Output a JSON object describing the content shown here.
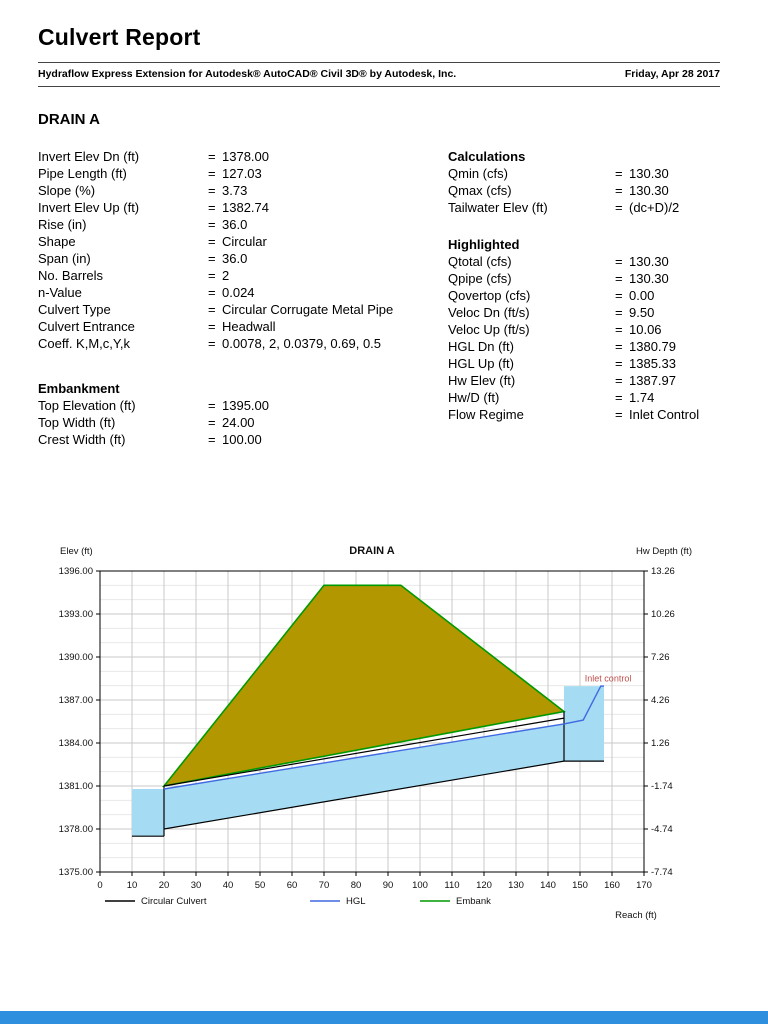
{
  "equals_sign": "=",
  "header": {
    "title": "Culvert Report",
    "subtitle": "Hydraflow Express Extension for Autodesk® AutoCAD® Civil 3D® by Autodesk, Inc.",
    "date": "Friday, Apr 28 2017"
  },
  "drain": {
    "heading": "DRAIN A"
  },
  "params_left": {
    "rows": [
      {
        "label": "Invert Elev Dn (ft)",
        "value": "1378.00"
      },
      {
        "label": "Pipe Length (ft)",
        "value": "127.03"
      },
      {
        "label": "Slope (%)",
        "value": "3.73"
      },
      {
        "label": "Invert Elev Up (ft)",
        "value": "1382.74"
      },
      {
        "label": "Rise (in)",
        "value": "36.0"
      },
      {
        "label": "Shape",
        "value": "Circular"
      },
      {
        "label": "Span (in)",
        "value": "36.0"
      },
      {
        "label": "No. Barrels",
        "value": "2"
      },
      {
        "label": "n-Value",
        "value": "0.024"
      },
      {
        "label": "Culvert Type",
        "value": "Circular Corrugate Metal Pipe"
      },
      {
        "label": "Culvert Entrance",
        "value": "Headwall"
      },
      {
        "label": "Coeff. K,M,c,Y,k",
        "value": "0.0078, 2, 0.0379, 0.69, 0.5"
      }
    ]
  },
  "embankment": {
    "heading": "Embankment",
    "rows": [
      {
        "label": "Top Elevation (ft)",
        "value": "1395.00"
      },
      {
        "label": "Top Width (ft)",
        "value": "24.00"
      },
      {
        "label": "Crest Width (ft)",
        "value": "100.00"
      }
    ]
  },
  "calculations": {
    "heading": "Calculations",
    "rows": [
      {
        "label": "Qmin (cfs)",
        "value": "130.30"
      },
      {
        "label": "Qmax (cfs)",
        "value": "130.30"
      },
      {
        "label": "Tailwater Elev (ft)",
        "value": "(dc+D)/2"
      }
    ]
  },
  "highlighted": {
    "heading": "Highlighted",
    "rows": [
      {
        "label": "Qtotal (cfs)",
        "value": "130.30"
      },
      {
        "label": "Qpipe (cfs)",
        "value": "130.30"
      },
      {
        "label": "Qovertop (cfs)",
        "value": "0.00"
      },
      {
        "label": "Veloc Dn (ft/s)",
        "value": "9.50"
      },
      {
        "label": "Veloc Up (ft/s)",
        "value": "10.06"
      },
      {
        "label": "HGL Dn (ft)",
        "value": "1380.79"
      },
      {
        "label": "HGL Up (ft)",
        "value": "1385.33"
      },
      {
        "label": "Hw Elev (ft)",
        "value": "1387.97"
      },
      {
        "label": "Hw/D (ft)",
        "value": "1.74"
      },
      {
        "label": "Flow Regime",
        "value": "Inlet Control"
      }
    ]
  },
  "chart_data": {
    "type": "area",
    "title": "DRAIN A",
    "left_axis_title": "Elev (ft)",
    "right_axis_title": "Hw Depth (ft)",
    "x_axis_title": "Reach (ft)",
    "reach_range": [
      0,
      170
    ],
    "elev_range": [
      1375,
      1396
    ],
    "x_tick_step": 10,
    "elev_ticks": [
      "1396.00",
      "1393.00",
      "1390.00",
      "1387.00",
      "1384.00",
      "1381.00",
      "1378.00",
      "1375.00"
    ],
    "hw_depth_ticks": [
      "13.26",
      "10.26",
      "7.26",
      "4.26",
      "1.26",
      "-1.74",
      "-4.74",
      "-7.74"
    ],
    "colors": {
      "water_fill": "#a5dcf3",
      "embank_fill": "#b39700",
      "embank_line": "#009900",
      "hgl_line": "#4169e1",
      "culvert_line": "#000000",
      "grid_major": "#c9c9c9",
      "grid_minor": "#e8e8e8",
      "annotation": "#c0504d",
      "footer_bar": "#2d8fdd"
    },
    "shapes": {
      "tailwater_pool": [
        [
          10,
          1377.5
        ],
        [
          20,
          1377.5
        ],
        [
          20,
          1380.79
        ],
        [
          10,
          1380.79
        ]
      ],
      "pipe_water": [
        [
          20,
          1378
        ],
        [
          145,
          1382.74
        ],
        [
          145,
          1385.33
        ],
        [
          20,
          1380.79
        ]
      ],
      "headwater_pool": [
        [
          145,
          1382.74
        ],
        [
          157.5,
          1382.74
        ],
        [
          157.5,
          1387.97
        ],
        [
          145,
          1387.97
        ]
      ],
      "embankment": [
        [
          20,
          1381
        ],
        [
          70,
          1395
        ],
        [
          94,
          1395
        ],
        [
          145,
          1386.2
        ]
      ],
      "culvert_bottom": [
        [
          20,
          1378
        ],
        [
          145,
          1382.74
        ]
      ],
      "culvert_top": [
        [
          20,
          1381
        ],
        [
          145,
          1385.74
        ]
      ],
      "ground_dn": [
        [
          10,
          1377.5
        ],
        [
          20,
          1377.5
        ]
      ],
      "ground_up": [
        [
          145,
          1382.74
        ],
        [
          157.5,
          1382.74
        ]
      ],
      "headwall_dn": [
        [
          20,
          1377.5
        ],
        [
          20,
          1381
        ]
      ],
      "headwall_up": [
        [
          145,
          1382.74
        ],
        [
          145,
          1386.2
        ]
      ],
      "hgl": [
        [
          20,
          1380.79
        ],
        [
          145,
          1385.33
        ],
        [
          151,
          1385.6
        ],
        [
          156.5,
          1387.97
        ],
        [
          157.5,
          1387.97
        ]
      ]
    },
    "annotation": {
      "text": "Inlet control",
      "reach": 151.5,
      "elev": 1388.3
    },
    "legend": [
      {
        "label": "Circular Culvert",
        "color": "#000000"
      },
      {
        "label": "HGL",
        "color": "#4169e1"
      },
      {
        "label": "Embank",
        "color": "#009900"
      }
    ]
  }
}
